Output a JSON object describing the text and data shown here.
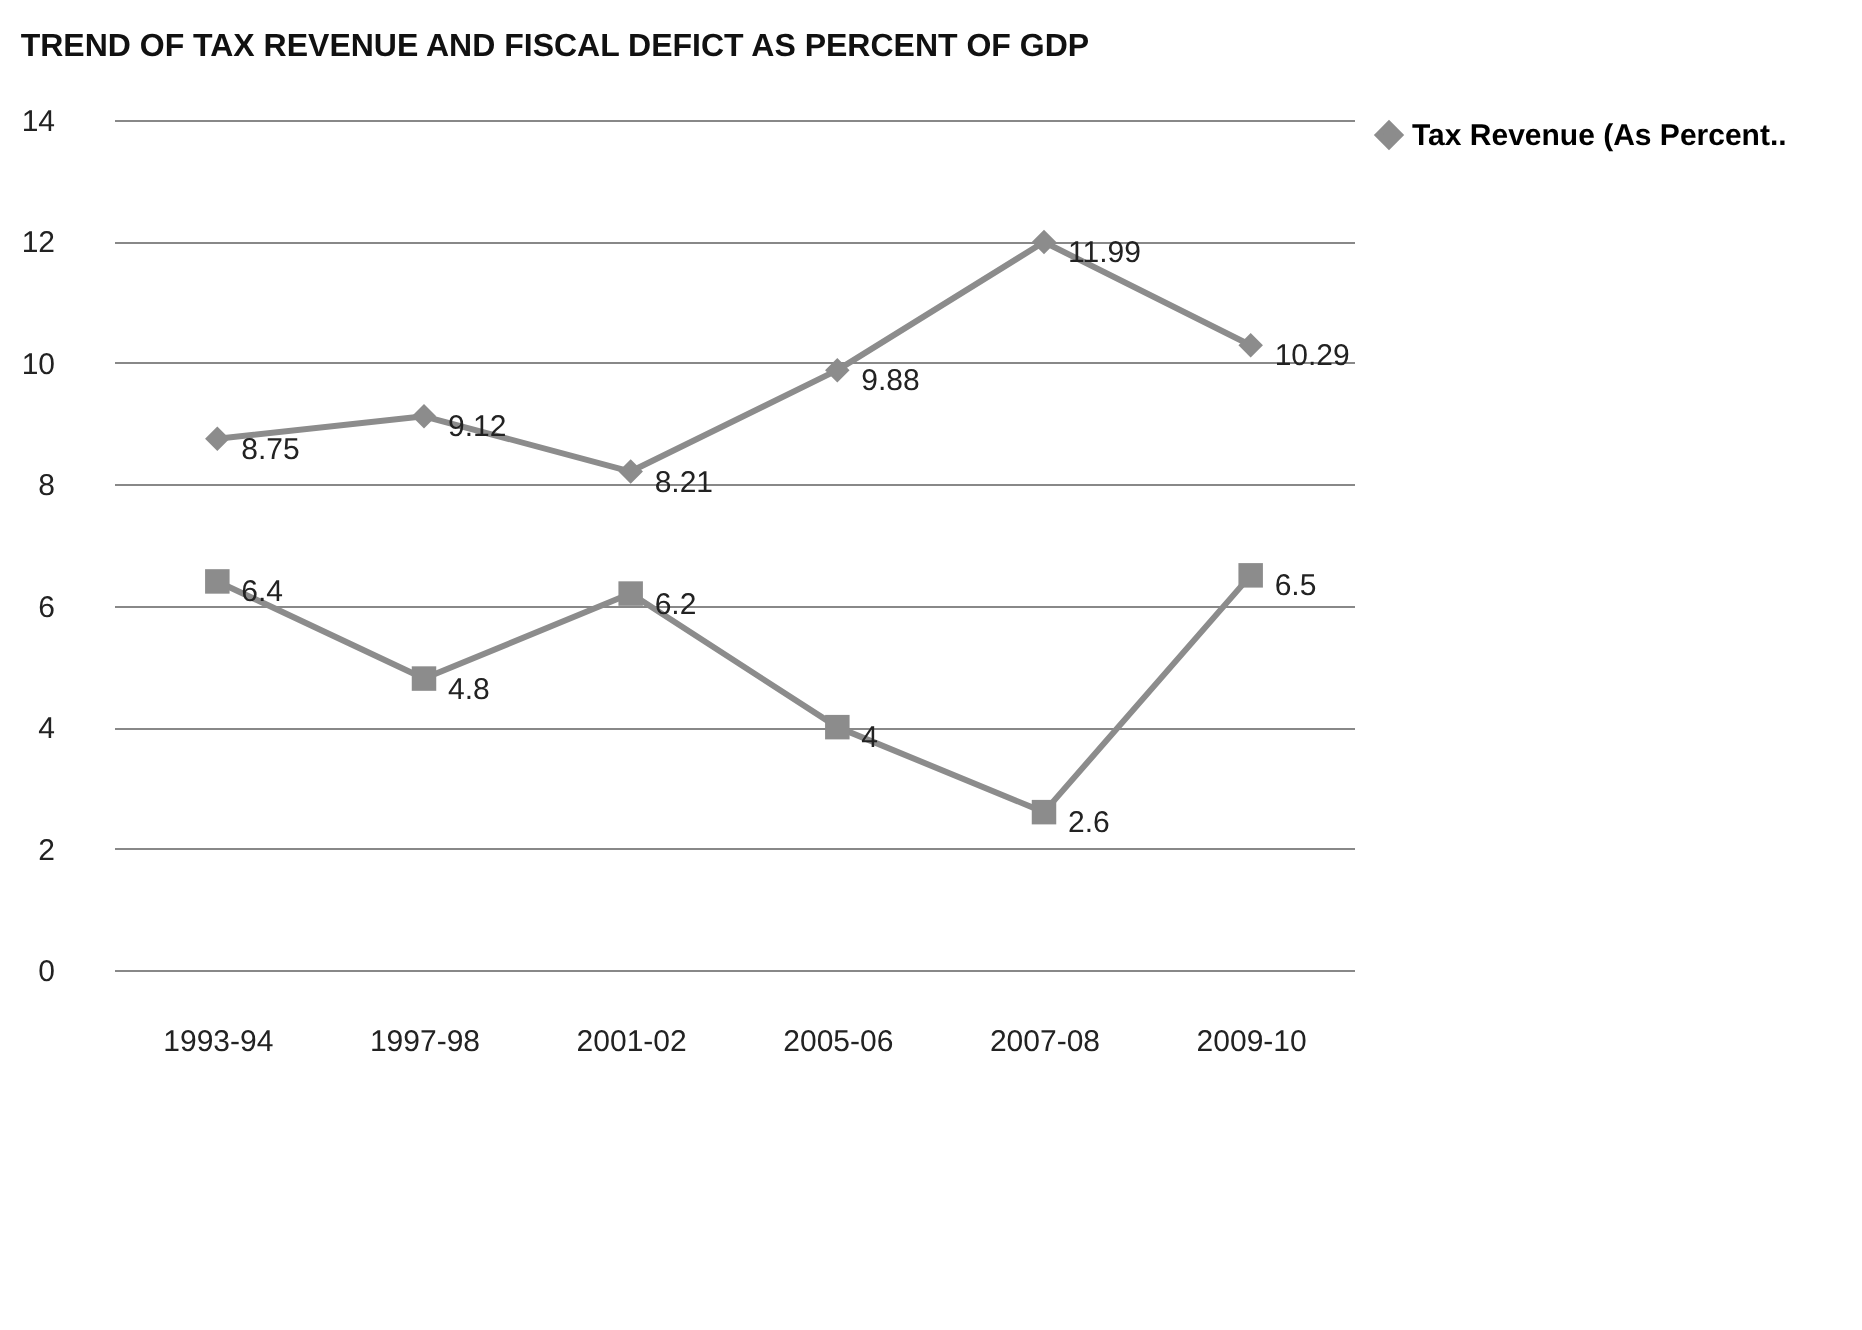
{
  "chart_data": {
    "type": "line",
    "title": "TREND OF TAX REVENUE AND FISCAL DEFICT AS PERCENT OF GDP",
    "categories": [
      "1993-94",
      "1997-98",
      "2001-02",
      "2005-06",
      "2007-08",
      "2009-10"
    ],
    "series": [
      {
        "name": "Tax Revenue (As Percent..",
        "color": "#8c8c8c",
        "marker": "diamond",
        "values": [
          8.75,
          9.12,
          8.21,
          9.88,
          11.99,
          10.29
        ]
      },
      {
        "color": "#8c8c8c",
        "marker": "square",
        "values": [
          6.4,
          4.8,
          6.2,
          4,
          2.6,
          6.5
        ]
      }
    ],
    "ylim": [
      0,
      14
    ],
    "yticks": [
      0,
      2,
      4,
      6,
      8,
      10,
      12,
      14
    ],
    "grid": "y",
    "legend": "right",
    "data_labels": true
  }
}
